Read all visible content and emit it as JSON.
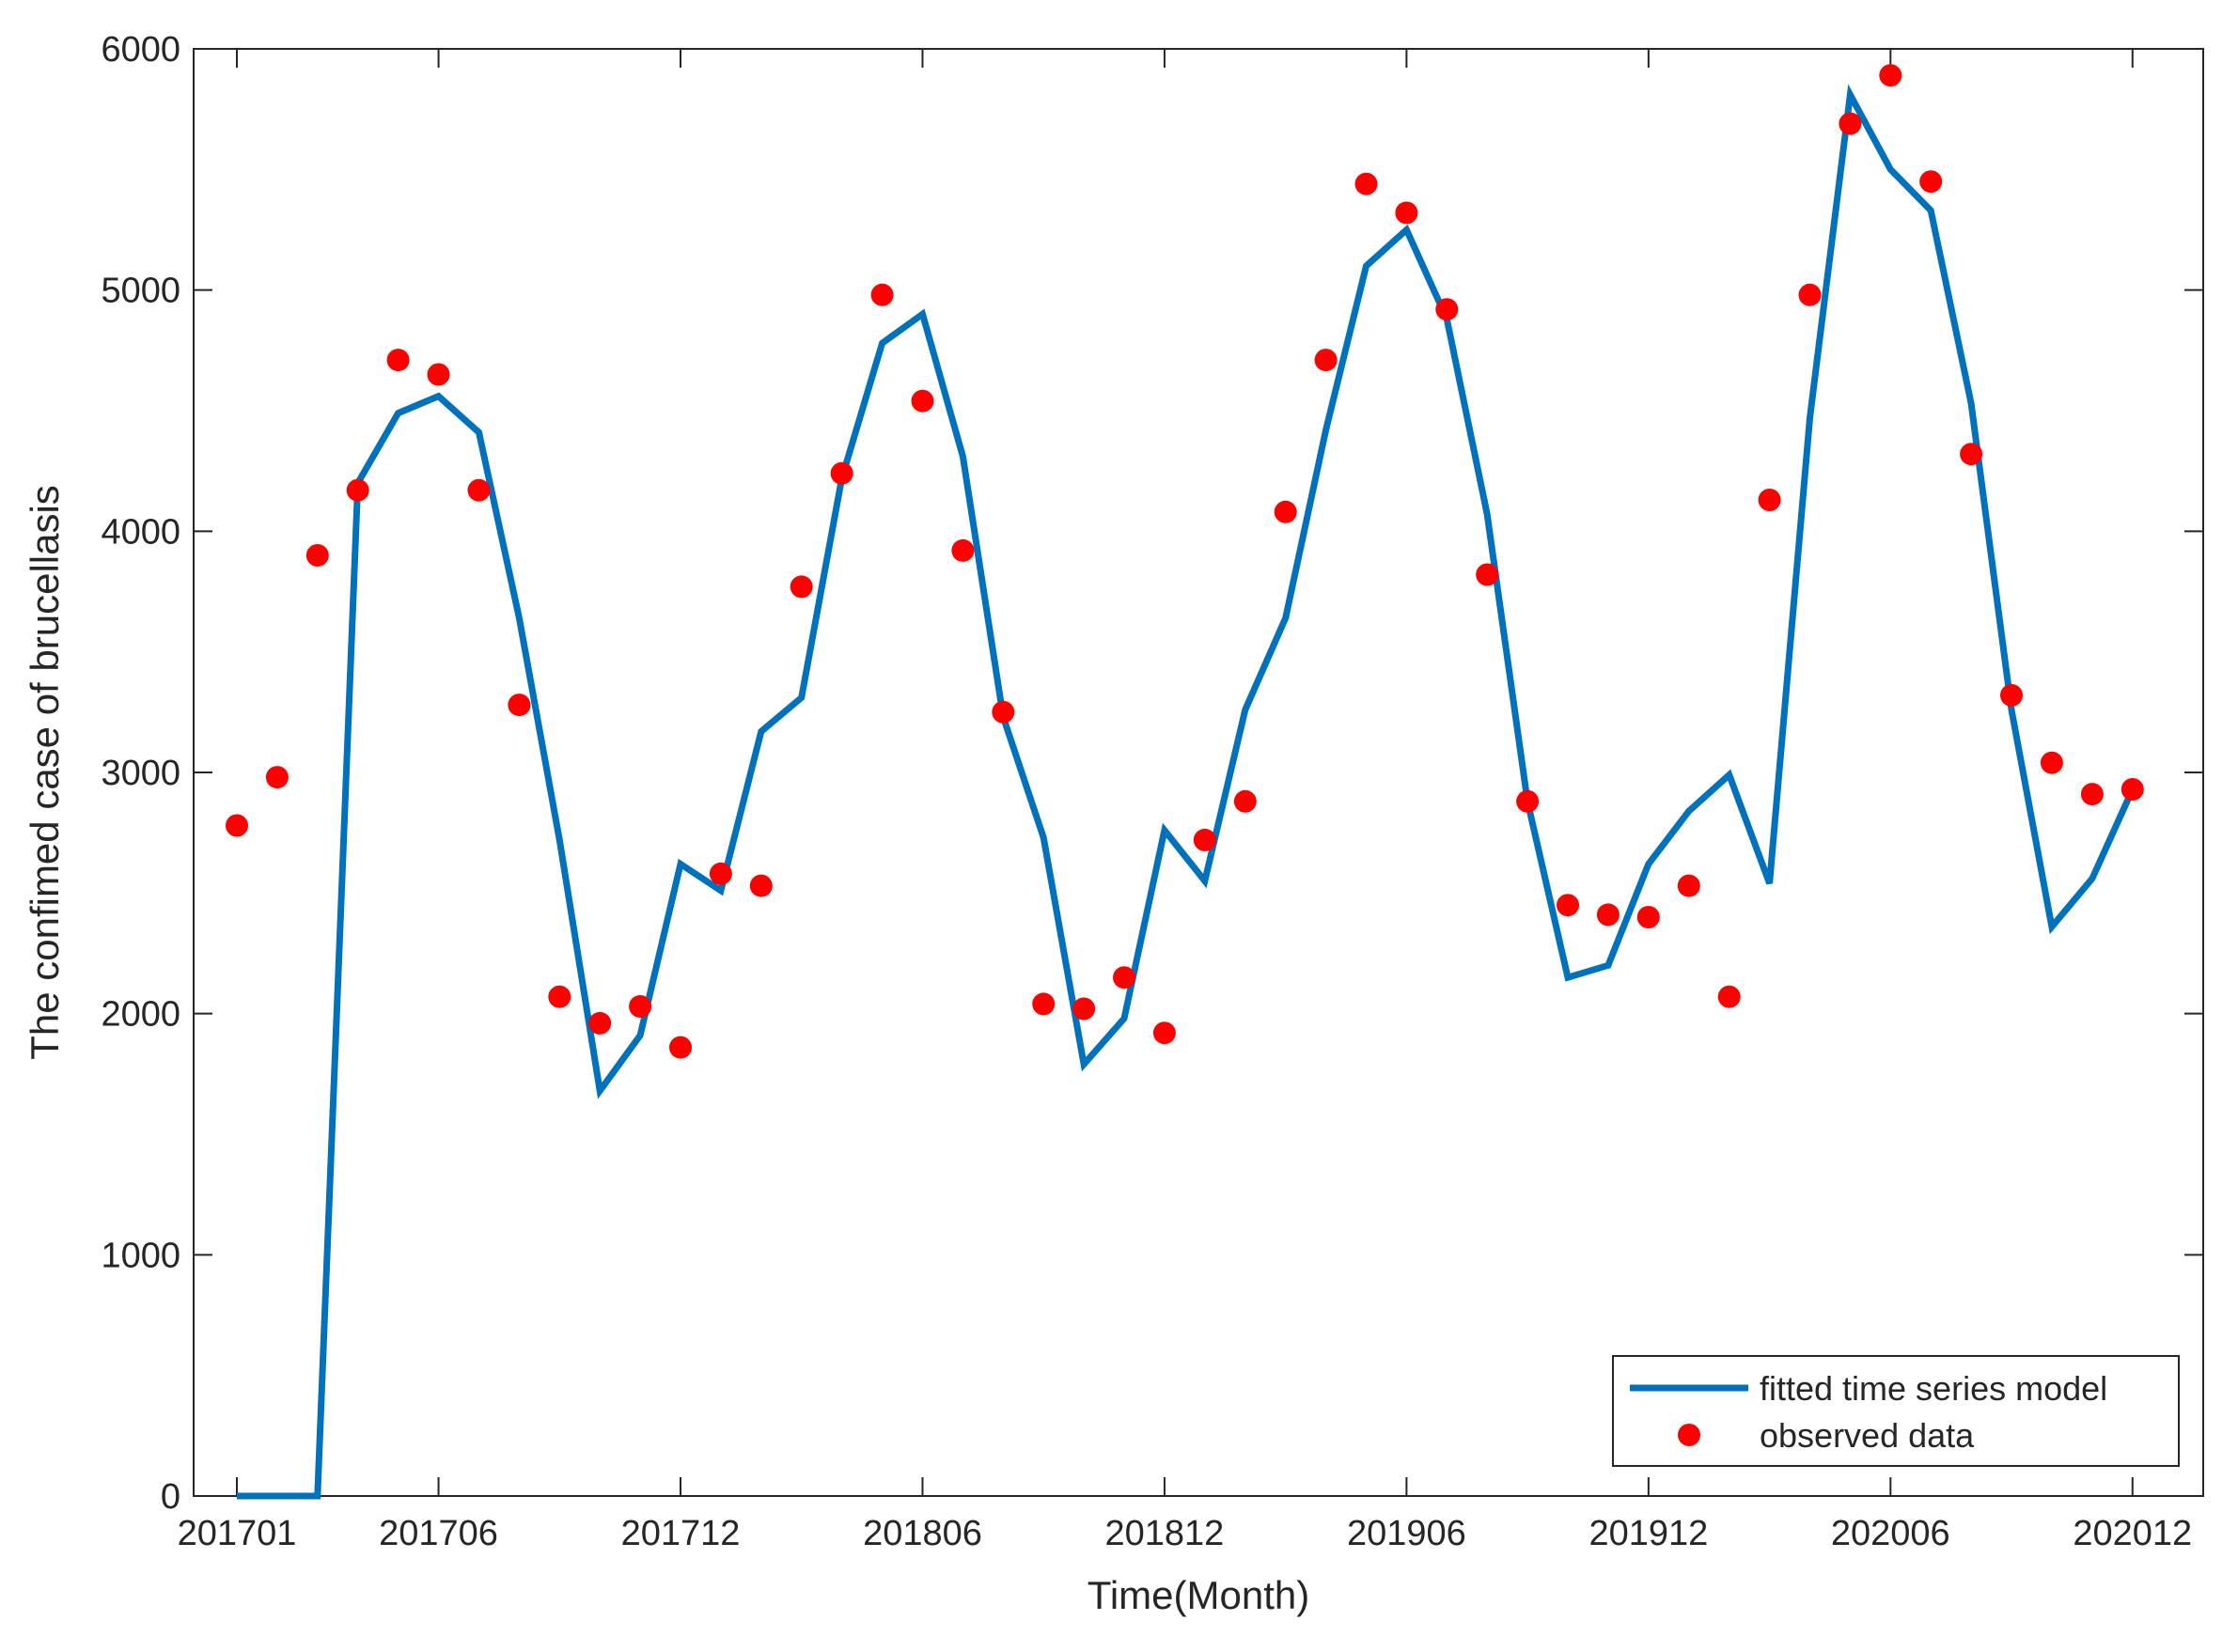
{
  "chart_data": {
    "type": "line",
    "title": "",
    "xlabel": "Time(Month)",
    "ylabel": "The confimed case of brucellasis",
    "ylim": [
      0,
      6000
    ],
    "yticks": [
      "0",
      "1000",
      "2000",
      "3000",
      "4000",
      "5000",
      "6000"
    ],
    "xticks": [
      {
        "index": 0,
        "label": "201701"
      },
      {
        "index": 5,
        "label": "201706"
      },
      {
        "index": 11,
        "label": "201712"
      },
      {
        "index": 17,
        "label": "201806"
      },
      {
        "index": 23,
        "label": "201812"
      },
      {
        "index": 29,
        "label": "201906"
      },
      {
        "index": 35,
        "label": "201912"
      },
      {
        "index": 41,
        "label": "202006"
      },
      {
        "index": 47,
        "label": "202012"
      }
    ],
    "legend": {
      "position": "bottom-right"
    },
    "grid": false,
    "series": [
      {
        "name": "fitted time series model",
        "kind": "line",
        "color": "#0072BD",
        "values": [
          0,
          0,
          0,
          4200,
          4490,
          4560,
          4410,
          3640,
          2720,
          1680,
          1910,
          2620,
          2510,
          3170,
          3310,
          4220,
          4780,
          4900,
          4310,
          3230,
          2730,
          1790,
          1980,
          2760,
          2550,
          3260,
          3640,
          4420,
          5100,
          5250,
          4880,
          4070,
          2880,
          2150,
          2200,
          2620,
          2840,
          2990,
          2540,
          4470,
          5810,
          5500,
          5330,
          4530,
          3260,
          2360,
          2560,
          2930
        ]
      },
      {
        "name": "observed data",
        "kind": "scatter",
        "color": "#FF0000",
        "values": [
          2780,
          2980,
          3900,
          4170,
          4710,
          4650,
          4170,
          3280,
          2070,
          1960,
          2030,
          1860,
          2580,
          2530,
          3770,
          4240,
          4980,
          4540,
          3920,
          3250,
          2040,
          2020,
          2150,
          1920,
          2720,
          2880,
          4080,
          4710,
          5440,
          5320,
          4920,
          3820,
          2880,
          2450,
          2410,
          2400,
          2530,
          2070,
          4130,
          4980,
          5690,
          5890,
          5450,
          4320,
          3320,
          3040,
          2910,
          2930
        ]
      }
    ]
  }
}
